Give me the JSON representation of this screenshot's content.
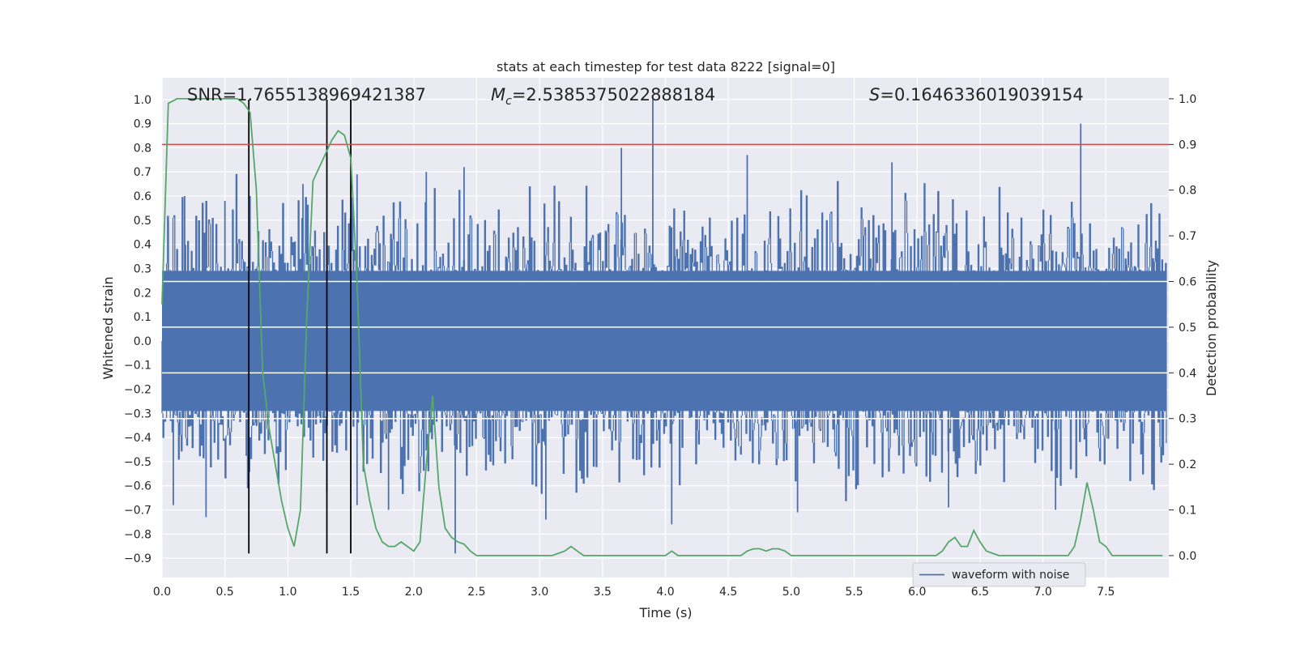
{
  "chart_data": {
    "type": "line",
    "title": "stats at each timestep for test data 8222 [signal=0]",
    "xlabel": "Time (s)",
    "ylabel_left": "Whitened strain",
    "ylabel_right": "Detection probability",
    "xlim": [
      0.0,
      8.0
    ],
    "ylim_left": [
      -0.98,
      1.09
    ],
    "ylim_right": [
      -0.048,
      1.046
    ],
    "x_ticks": [
      0.0,
      0.5,
      1.0,
      1.5,
      2.0,
      2.5,
      3.0,
      3.5,
      4.0,
      4.5,
      5.0,
      5.5,
      6.0,
      6.5,
      7.0,
      7.5
    ],
    "x_tick_labels": [
      "0.0",
      "0.5",
      "1.0",
      "1.5",
      "2.0",
      "2.5",
      "3.0",
      "3.5",
      "4.0",
      "4.5",
      "5.0",
      "5.5",
      "6.0",
      "6.5",
      "7.0",
      "7.5"
    ],
    "y_left_ticks": [
      1.0,
      0.9,
      0.8,
      0.7,
      0.6,
      0.5,
      0.4,
      0.3,
      0.2,
      0.1,
      0.0,
      -0.1,
      -0.2,
      -0.3,
      -0.4,
      -0.5,
      -0.6,
      -0.7,
      -0.8,
      -0.9
    ],
    "y_left_tick_labels": [
      "1.0",
      "0.9",
      "0.8",
      "0.7",
      "0.6",
      "0.5",
      "0.4",
      "0.3",
      "0.2",
      "0.1",
      "0.0",
      "−0.1",
      "−0.2",
      "−0.3",
      "−0.4",
      "−0.5",
      "−0.6",
      "−0.7",
      "−0.8",
      "−0.9"
    ],
    "y_right_ticks": [
      1.0,
      0.9,
      0.8,
      0.7,
      0.6,
      0.5,
      0.4,
      0.3,
      0.2,
      0.1,
      0.0
    ],
    "y_right_tick_labels": [
      "1.0",
      "0.9",
      "0.8",
      "0.7",
      "0.6",
      "0.5",
      "0.4",
      "0.3",
      "0.2",
      "0.1",
      "0.0"
    ],
    "annotations": {
      "snr": "SNR=1.7655138969421387",
      "mc_symbol": "M",
      "mc_sub": "c",
      "mc_value": "=2.5385375022888184",
      "s_symbol": "S",
      "s_value": "=0.1646336019039154"
    },
    "legend": {
      "label": "waveform with noise",
      "location": "lower right"
    },
    "threshold_line": {
      "axis": "right",
      "value": 0.9,
      "color": "#c44e52"
    },
    "vertical_lines": {
      "x": [
        0.69,
        1.31,
        1.5
      ],
      "ymin": -0.88,
      "ymax": 1.0,
      "color": "#000000"
    },
    "series": [
      {
        "name": "waveform with noise",
        "axis": "left",
        "color": "#4c72b0",
        "style": "dense noise band",
        "band_center": 0.0,
        "band_half_width": 0.29,
        "peaks": [
          {
            "x": 0.05,
            "y": 0.5
          },
          {
            "x": 0.18,
            "y": 0.6
          },
          {
            "x": 0.35,
            "y": 0.58
          },
          {
            "x": 0.5,
            "y": 0.58
          },
          {
            "x": 0.7,
            "y": 0.6
          },
          {
            "x": 1.12,
            "y": 0.65
          },
          {
            "x": 1.55,
            "y": 0.69
          },
          {
            "x": 2.1,
            "y": 0.7
          },
          {
            "x": 2.4,
            "y": 0.72
          },
          {
            "x": 3.65,
            "y": 0.8
          },
          {
            "x": 3.9,
            "y": 1.0
          },
          {
            "x": 4.65,
            "y": 0.77
          },
          {
            "x": 5.8,
            "y": 0.74
          },
          {
            "x": 7.3,
            "y": 0.9
          }
        ],
        "troughs": [
          {
            "x": 0.09,
            "y": -0.68
          },
          {
            "x": 0.35,
            "y": -0.73
          },
          {
            "x": 0.68,
            "y": -0.61
          },
          {
            "x": 1.31,
            "y": -0.63
          },
          {
            "x": 1.55,
            "y": -0.68
          },
          {
            "x": 1.8,
            "y": -0.7
          },
          {
            "x": 2.33,
            "y": -0.88
          },
          {
            "x": 3.05,
            "y": -0.74
          },
          {
            "x": 4.05,
            "y": -0.76
          },
          {
            "x": 5.05,
            "y": -0.71
          },
          {
            "x": 6.25,
            "y": -0.69
          },
          {
            "x": 7.1,
            "y": -0.7
          }
        ]
      },
      {
        "name": "detection probability",
        "axis": "right",
        "color": "#55a868",
        "x": [
          0.0,
          0.05,
          0.12,
          0.2,
          0.3,
          0.4,
          0.5,
          0.6,
          0.65,
          0.7,
          0.75,
          0.8,
          0.85,
          0.9,
          0.95,
          1.0,
          1.05,
          1.1,
          1.15,
          1.2,
          1.25,
          1.3,
          1.35,
          1.4,
          1.45,
          1.5,
          1.55,
          1.6,
          1.65,
          1.7,
          1.75,
          1.8,
          1.85,
          1.9,
          1.95,
          2.0,
          2.05,
          2.1,
          2.15,
          2.2,
          2.25,
          2.3,
          2.35,
          2.4,
          2.45,
          2.5,
          2.55,
          2.6,
          2.7,
          2.8,
          3.0,
          3.1,
          3.2,
          3.25,
          3.3,
          3.35,
          3.4,
          3.5,
          3.6,
          3.8,
          4.0,
          4.05,
          4.1,
          4.2,
          4.3,
          4.5,
          4.6,
          4.65,
          4.7,
          4.75,
          4.8,
          4.85,
          4.9,
          4.95,
          5.0,
          5.1,
          5.3,
          5.5,
          5.8,
          6.0,
          6.15,
          6.2,
          6.25,
          6.3,
          6.35,
          6.4,
          6.45,
          6.5,
          6.55,
          6.6,
          6.65,
          6.7,
          6.8,
          7.0,
          7.1,
          7.2,
          7.25,
          7.3,
          7.35,
          7.4,
          7.45,
          7.5,
          7.55,
          7.6,
          7.65,
          7.7,
          7.8,
          7.95
        ],
        "y": [
          0.55,
          0.99,
          1.0,
          1.0,
          1.0,
          1.0,
          1.0,
          1.0,
          0.99,
          0.97,
          0.8,
          0.4,
          0.28,
          0.2,
          0.12,
          0.06,
          0.02,
          0.1,
          0.52,
          0.82,
          0.85,
          0.88,
          0.91,
          0.93,
          0.92,
          0.87,
          0.6,
          0.2,
          0.12,
          0.06,
          0.03,
          0.02,
          0.02,
          0.03,
          0.02,
          0.01,
          0.03,
          0.2,
          0.35,
          0.15,
          0.06,
          0.04,
          0.03,
          0.025,
          0.01,
          0.0,
          0.0,
          0.0,
          0.0,
          0.0,
          0.0,
          0.0,
          0.01,
          0.02,
          0.01,
          0.0,
          0.0,
          0.0,
          0.0,
          0.0,
          0.0,
          0.01,
          0.0,
          0.0,
          0.0,
          0.0,
          0.0,
          0.01,
          0.015,
          0.015,
          0.01,
          0.015,
          0.015,
          0.01,
          0.0,
          0.0,
          0.0,
          0.0,
          0.0,
          0.0,
          0.0,
          0.01,
          0.03,
          0.04,
          0.02,
          0.02,
          0.055,
          0.03,
          0.01,
          0.005,
          0.0,
          0.0,
          0.0,
          0.0,
          0.0,
          0.0,
          0.02,
          0.08,
          0.16,
          0.1,
          0.03,
          0.02,
          0.0,
          0.0,
          0.0,
          0.0,
          0.0,
          0.0
        ]
      }
    ]
  }
}
